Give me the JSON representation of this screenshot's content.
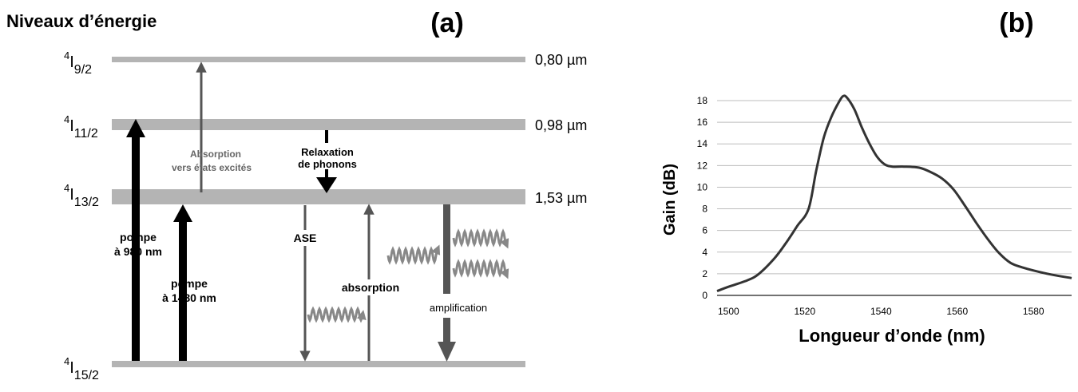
{
  "panel_a": {
    "title": "Niveaux d’énergie",
    "label": "(a)",
    "levels": [
      {
        "sup": "4",
        "main": "I",
        "sub": "9/2",
        "wavelength": "0,80 µm"
      },
      {
        "sup": "4",
        "main": "I",
        "sub": "11/2",
        "wavelength": "0,98 µm"
      },
      {
        "sup": "4",
        "main": "I",
        "sub": "13/2",
        "wavelength": "1,53 µm"
      },
      {
        "sup": "4",
        "main": "I",
        "sub": "15/2",
        "wavelength": ""
      }
    ],
    "labels": {
      "esa_line1": "Absorption",
      "esa_line2": "vers états excités",
      "relax_line1": "Relaxation",
      "relax_line2": "de phonons",
      "pump980_line1": "pompe",
      "pump980_line2": "à 980 nm",
      "pump1480_line1": "pompe",
      "pump1480_line2": "à 1480 nm",
      "ase": "ASE",
      "absorption": "absorption",
      "amplification": "amplification"
    },
    "colors": {
      "level_bar": "#b4b4b4",
      "black_arrow": "#000000",
      "gray_arrow": "#555555",
      "wave": "#888888"
    }
  },
  "panel_b": {
    "label": "(b)",
    "chart_data": {
      "type": "line",
      "xlabel": "Longueur d’onde  (nm)",
      "ylabel": "Gain (dB)",
      "xlim": [
        1497,
        1590
      ],
      "ylim": [
        0,
        18
      ],
      "xticks": [
        1500,
        1520,
        1540,
        1560,
        1580
      ],
      "yticks": [
        0,
        2,
        4,
        6,
        8,
        10,
        12,
        14,
        16,
        18
      ],
      "grid": "horizontal",
      "series": [
        {
          "x": [
            1497,
            1500,
            1505,
            1508,
            1512,
            1515,
            1518,
            1521,
            1523,
            1525,
            1527,
            1529,
            1530,
            1531,
            1533,
            1535,
            1537,
            1539,
            1541,
            1543,
            1546,
            1550,
            1553,
            1556,
            1559,
            1562,
            1565,
            1568,
            1571,
            1574,
            1577,
            1580,
            1585,
            1590
          ],
          "y": [
            0.4,
            0.8,
            1.4,
            2.0,
            3.4,
            4.8,
            6.4,
            8.0,
            11.5,
            14.6,
            16.5,
            17.9,
            18.4,
            18.3,
            17.2,
            15.5,
            14.0,
            12.8,
            12.1,
            11.9,
            11.9,
            11.8,
            11.4,
            10.8,
            9.8,
            8.3,
            6.7,
            5.2,
            3.9,
            3.0,
            2.6,
            2.3,
            1.9,
            1.6
          ]
        }
      ],
      "line_color": "#333333"
    }
  }
}
